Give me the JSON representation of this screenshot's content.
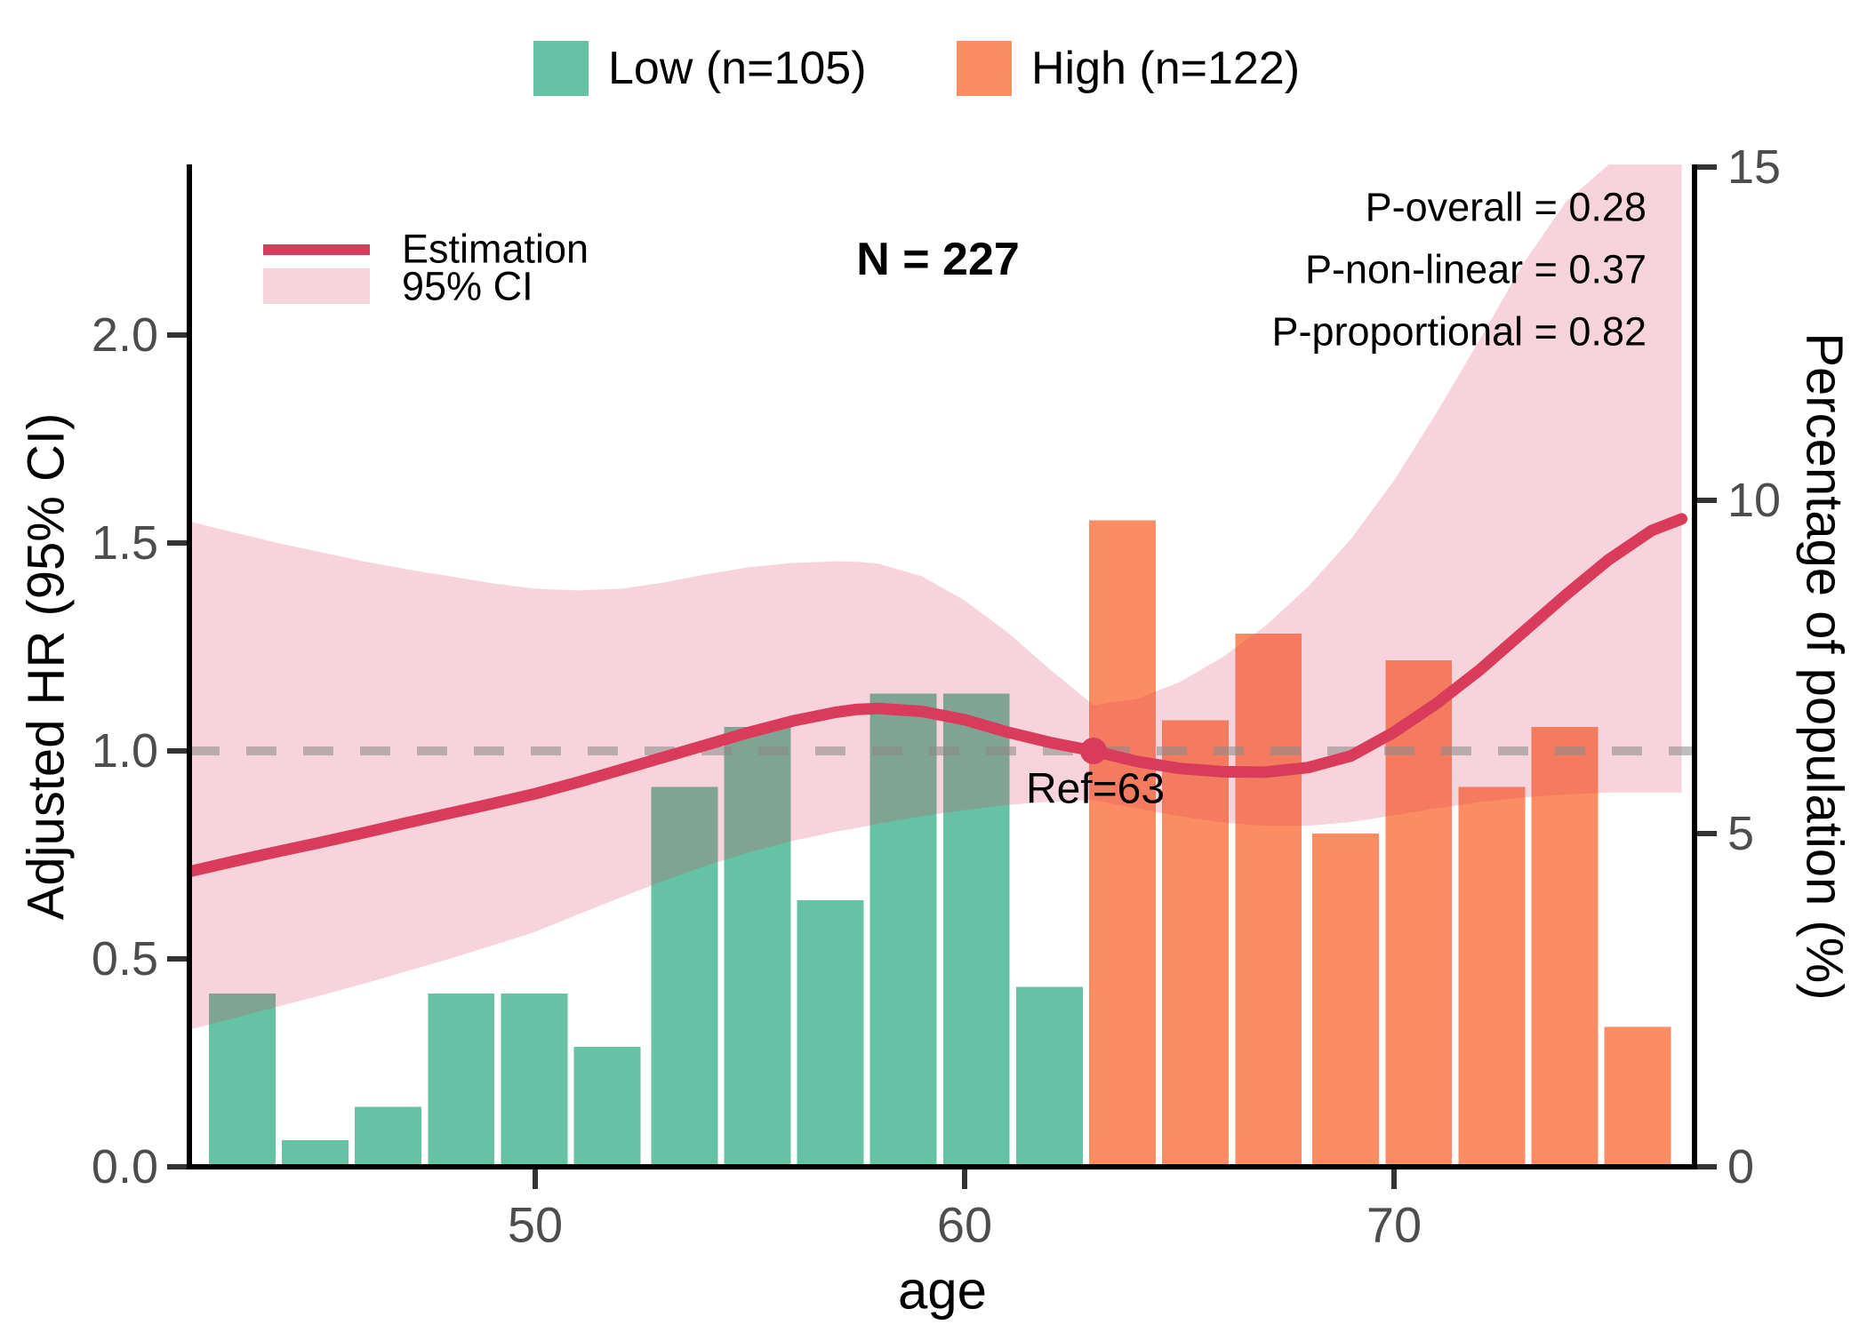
{
  "legend_top": {
    "low_label": "Low (n=105)",
    "high_label": "High (n=122)"
  },
  "legend_inner": {
    "estimation_label": "Estimation",
    "ci_label": "95% CI"
  },
  "annotations": {
    "n_total": "N = 227",
    "p_overall": "P-overall = 0.28",
    "p_non_linear": "P-non-linear = 0.37",
    "p_proportional": "P-proportional = 0.82",
    "ref_label": "Ref=63"
  },
  "colors": {
    "low_green": "#66c2a5",
    "high_orange": "#fc8d62",
    "estimation_red": "#d93c5b",
    "ci_band_fill": "#d93c5b",
    "ci_band_on_white": "#f6d4db",
    "dashed_gray": "#8a8a8a",
    "tick_label_gray": "#4d4d4d",
    "spine_black": "#000000"
  },
  "chart_data": {
    "type": "line+area+histogram",
    "xlabel": "age",
    "ylabel_left": "Adjusted HR (95% CI)",
    "ylabel_right": "Percentage of population (%)",
    "x_range": [
      41.95,
      77.0
    ],
    "y_left_range_hr": [
      0,
      2.41
    ],
    "y_right_range_pct": [
      0,
      15
    ],
    "grid": "off",
    "x_ticks": {
      "values": [
        50,
        60,
        70
      ],
      "labels": [
        "50",
        "60",
        "70"
      ]
    },
    "y_left_ticks": {
      "values": [
        0,
        0.5,
        1.0,
        1.5,
        2.0
      ],
      "labels": [
        "0.0",
        "0.5",
        "1.0",
        "1.5",
        "2.0"
      ]
    },
    "y_right_ticks": {
      "values": [
        0,
        5,
        10,
        15
      ],
      "labels": [
        "0",
        "5",
        "10",
        "15"
      ]
    },
    "reference_line_hr": 1.0,
    "ref_point": {
      "age": 63,
      "hr": 1.0
    },
    "histogram": {
      "bar_width_years": 1.55,
      "series": [
        {
          "name": "Low (n=105)",
          "color_key": "low_green",
          "bins_start_age": [
            42.4,
            44.1,
            45.8,
            47.5,
            49.2,
            50.9,
            52.7,
            54.4,
            56.1,
            57.8,
            59.5,
            61.2
          ],
          "pct_of_population": [
            2.6,
            0.4,
            0.9,
            2.6,
            2.6,
            1.8,
            5.7,
            6.6,
            4.0,
            7.1,
            7.1,
            2.7
          ]
        },
        {
          "name": "High (n=122)",
          "color_key": "high_orange",
          "bins_start_age": [
            62.9,
            64.6,
            66.3,
            68.1,
            69.8,
            71.5,
            73.2,
            74.9
          ],
          "pct_of_population": [
            9.7,
            6.7,
            8.0,
            5.0,
            7.6,
            5.7,
            6.6,
            2.1
          ]
        }
      ]
    },
    "spline": {
      "ages": [
        41.95,
        43,
        44,
        45,
        46,
        47,
        48,
        49,
        50,
        51,
        52,
        53,
        54,
        55,
        56,
        57,
        57.5,
        58,
        59,
        60,
        61,
        62,
        63,
        64,
        65,
        66,
        67,
        68,
        69,
        70,
        71,
        72,
        73,
        74,
        75,
        76,
        76.7
      ],
      "estimation_hr": [
        0.71,
        0.735,
        0.758,
        0.78,
        0.803,
        0.827,
        0.85,
        0.873,
        0.897,
        0.925,
        0.955,
        0.985,
        1.015,
        1.045,
        1.072,
        1.093,
        1.1,
        1.102,
        1.095,
        1.075,
        1.045,
        1.02,
        1.0,
        0.975,
        0.958,
        0.95,
        0.949,
        0.96,
        0.988,
        1.045,
        1.115,
        1.195,
        1.285,
        1.375,
        1.46,
        1.53,
        1.558
      ],
      "ci_upper_hr": [
        1.552,
        1.525,
        1.5,
        1.478,
        1.456,
        1.437,
        1.42,
        1.403,
        1.39,
        1.386,
        1.39,
        1.405,
        1.425,
        1.442,
        1.452,
        1.456,
        1.455,
        1.45,
        1.42,
        1.362,
        1.285,
        1.195,
        1.11,
        1.125,
        1.165,
        1.225,
        1.3,
        1.395,
        1.51,
        1.65,
        1.815,
        1.99,
        2.17,
        2.32,
        2.41,
        2.41,
        2.41
      ],
      "ci_lower_hr": [
        0.33,
        0.358,
        0.385,
        0.412,
        0.44,
        0.47,
        0.5,
        0.532,
        0.565,
        0.607,
        0.648,
        0.688,
        0.725,
        0.757,
        0.784,
        0.806,
        0.815,
        0.825,
        0.843,
        0.858,
        0.87,
        0.878,
        0.882,
        0.862,
        0.843,
        0.828,
        0.82,
        0.82,
        0.829,
        0.845,
        0.862,
        0.877,
        0.888,
        0.895,
        0.9,
        0.9,
        0.9
      ]
    }
  }
}
